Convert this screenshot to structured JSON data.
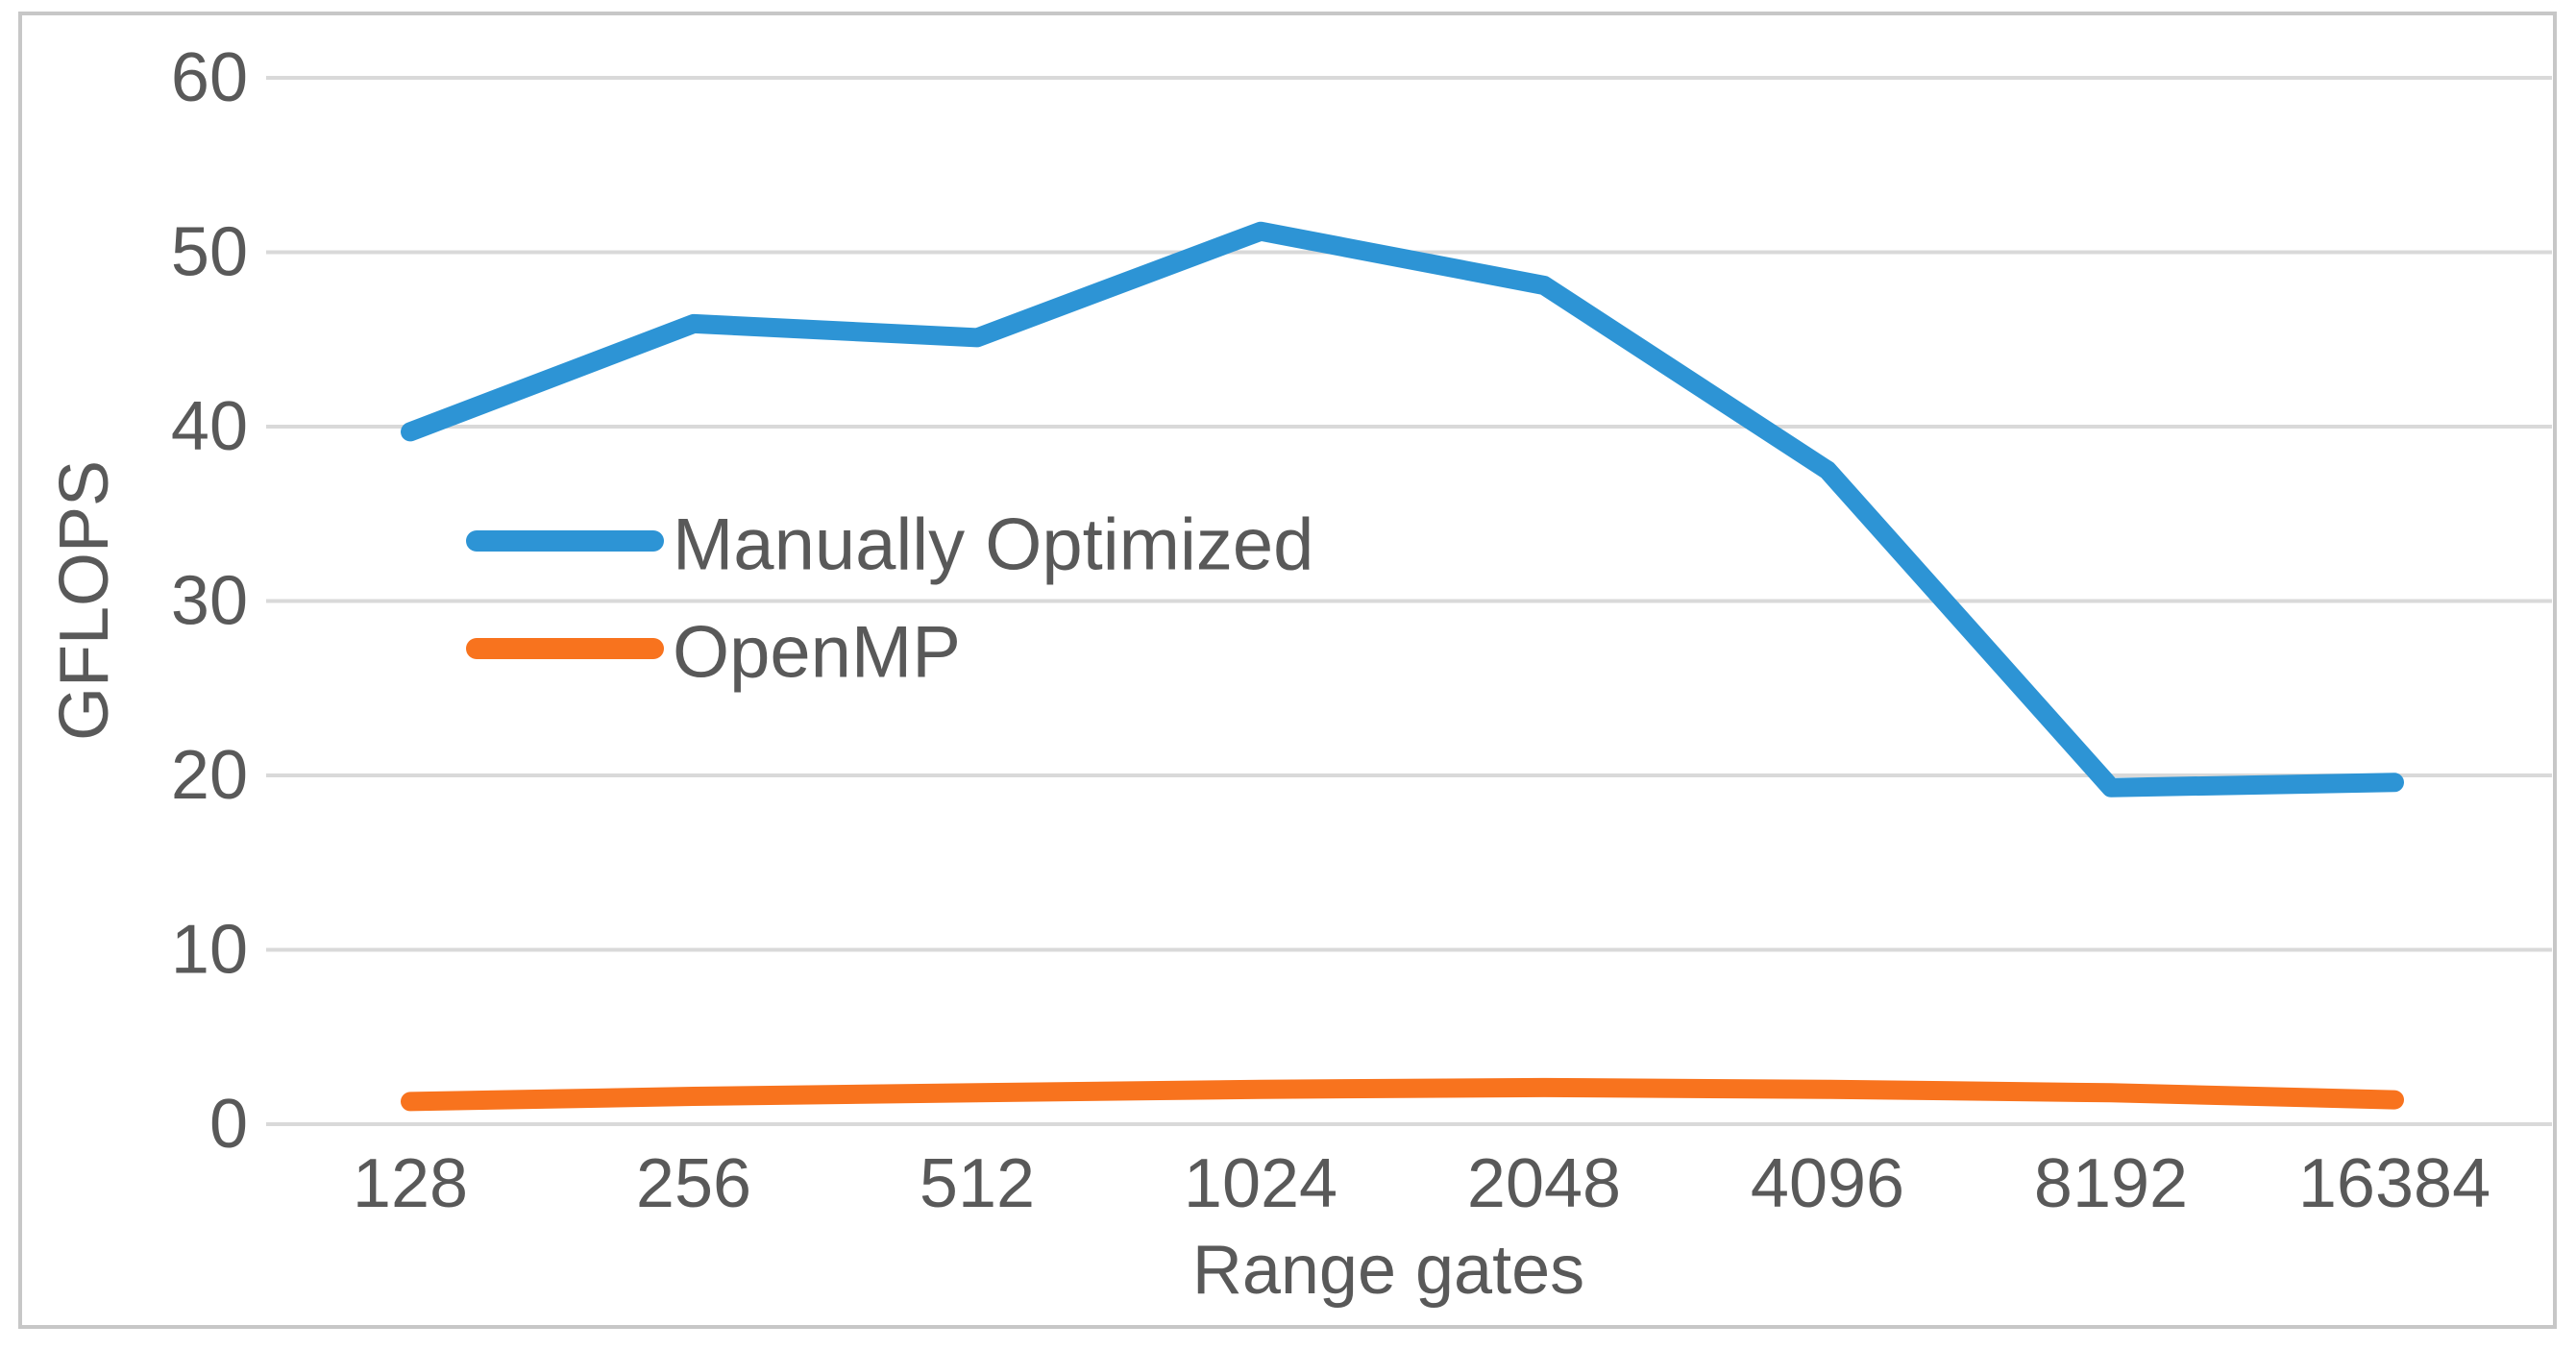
{
  "chart_data": {
    "type": "line",
    "title": "",
    "categories": [
      "128",
      "256",
      "512",
      "1024",
      "2048",
      "4096",
      "8192",
      "16384"
    ],
    "series": [
      {
        "name": "Manually Optimized",
        "color": "#2D94D5",
        "values": [
          39.7,
          45.9,
          45.1,
          51.2,
          48.1,
          37.5,
          19.3,
          19.6
        ]
      },
      {
        "name": "OpenMP",
        "color": "#F8731E",
        "values": [
          1.3,
          1.6,
          1.8,
          2.0,
          2.1,
          2.0,
          1.8,
          1.4
        ]
      }
    ],
    "xlabel": "Range gates",
    "ylabel": "GFLOPS",
    "ylim": [
      0,
      60
    ],
    "y_ticks": [
      0,
      10,
      20,
      30,
      40,
      50,
      60
    ],
    "grid": "horizontal-only",
    "legend_position": "inside-left-middle"
  },
  "colors": {
    "text": "#595959",
    "gridline": "#D9D9D9",
    "frame": "#C7C7C7",
    "background": "#FFFFFF",
    "series_blue": "#2D94D5",
    "series_orange": "#F8731E"
  }
}
